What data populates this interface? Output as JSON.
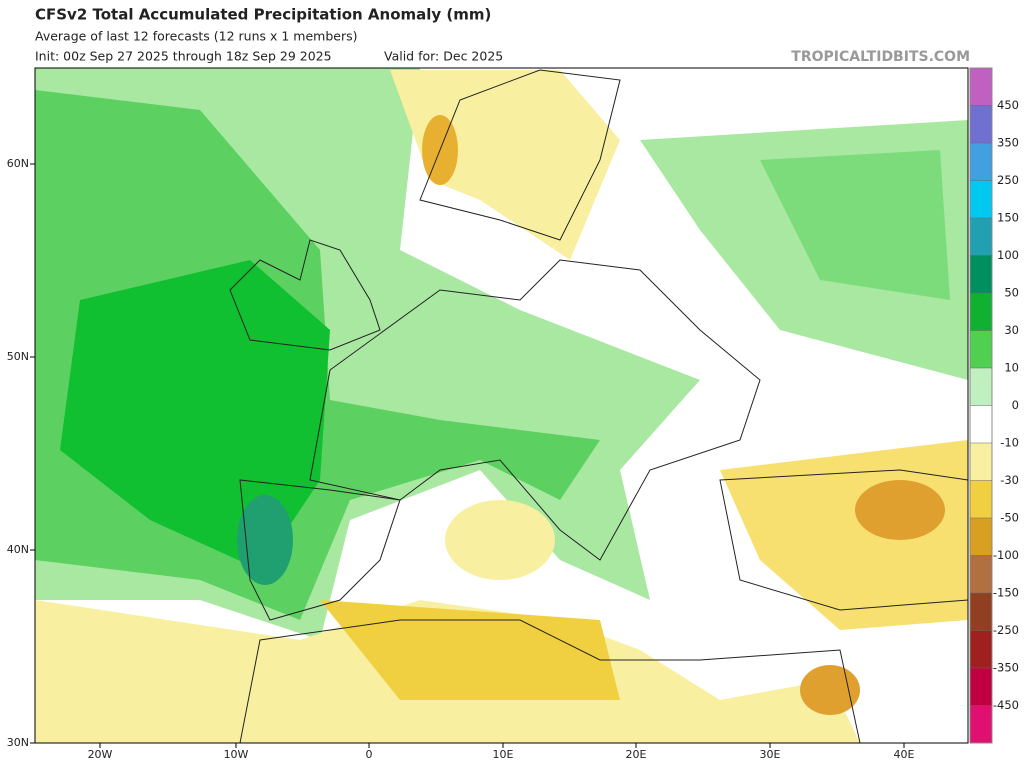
{
  "header": {
    "title": "CFSv2 Total Accumulated Precipitation Anomaly (mm)",
    "subtitle": "Average of last 12 forecasts (12 runs x 1 members)",
    "init": "Init: 00z Sep 27 2025 through 18z Sep 29 2025",
    "valid": "Valid for: Dec 2025",
    "watermark": "TROPICALTIDBITS.COM"
  },
  "map": {
    "lon_labels": [
      "20W",
      "10W",
      "0",
      "10E",
      "20E",
      "30E",
      "40E"
    ],
    "lat_labels": [
      "60N",
      "50N",
      "40N",
      "30N"
    ]
  },
  "colorbar": {
    "labels": [
      "450",
      "350",
      "250",
      "150",
      "100",
      "50",
      "30",
      "10",
      "0",
      "-10",
      "-30",
      "-50",
      "-100",
      "-150",
      "-250",
      "-350",
      "-450"
    ],
    "colors": [
      "#c060c0",
      "#7070d0",
      "#40a0e0",
      "#00c8f0",
      "#20a0b0",
      "#009060",
      "#10b030",
      "#50d050",
      "#c0f0c0",
      "#ffffff",
      "#f8f0a0",
      "#f0d040",
      "#d8a020",
      "#b07040",
      "#904020",
      "#a02020",
      "#c00040",
      "#e01070"
    ]
  }
}
